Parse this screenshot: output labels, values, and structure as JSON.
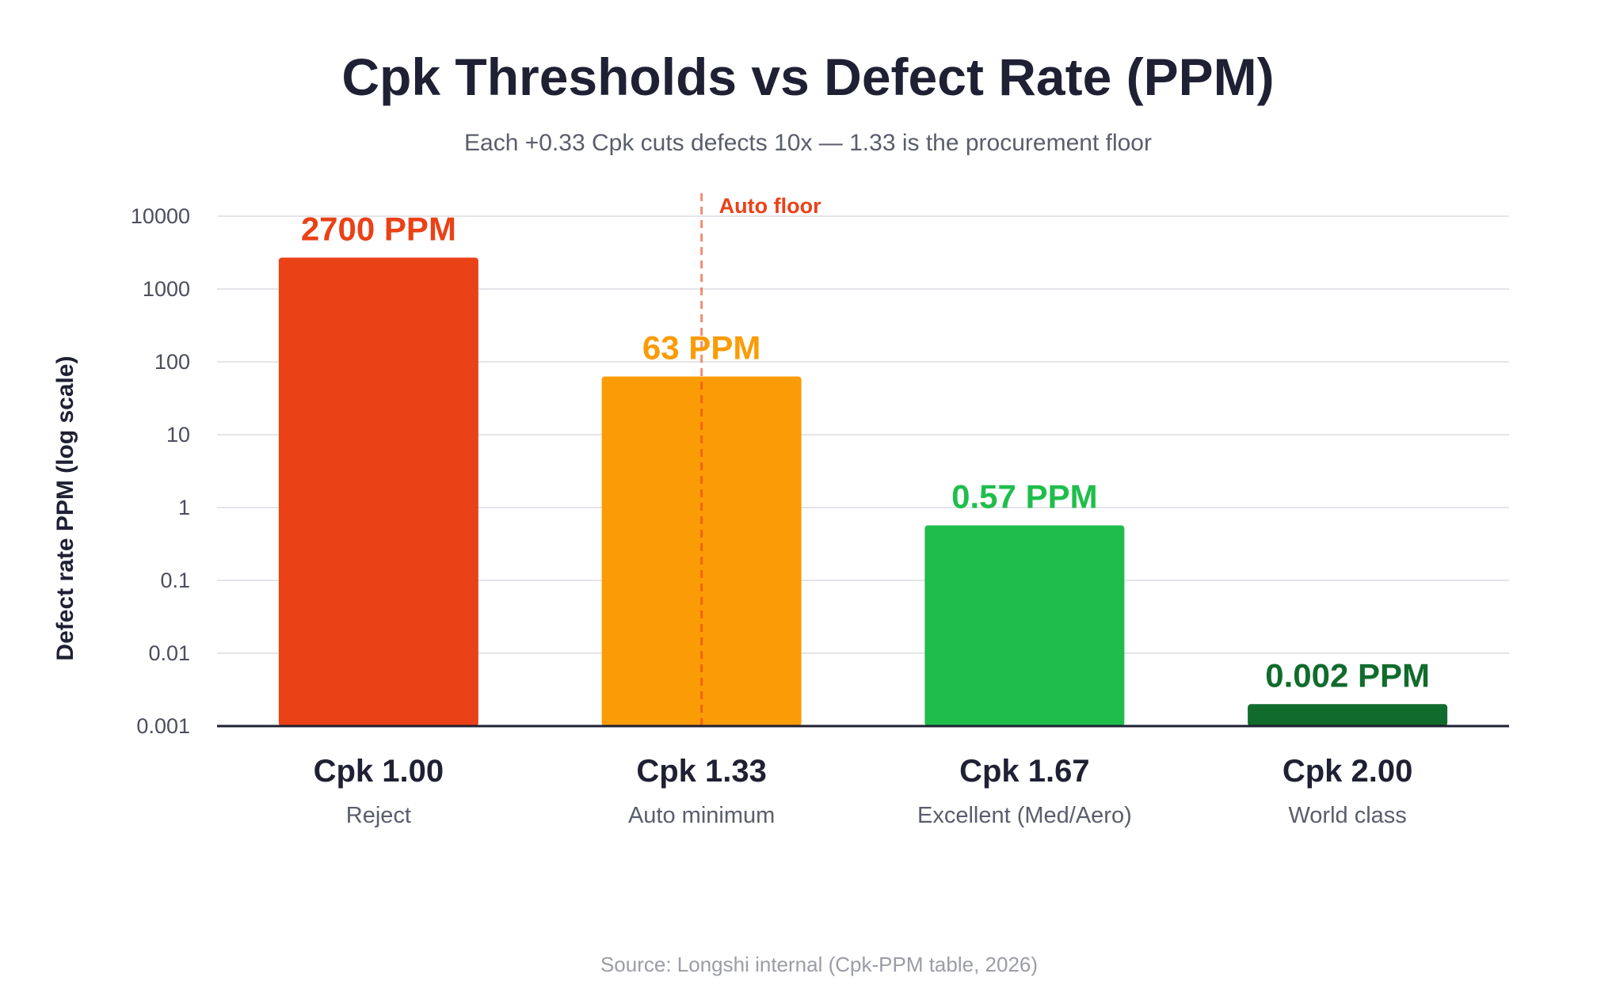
{
  "chart_data": {
    "type": "bar",
    "title": "Cpk Thresholds vs Defect Rate (PPM)",
    "subtitle": "Each +0.33 Cpk cuts defects 10x — 1.33 is the procurement floor",
    "xlabel": "",
    "ylabel": "Defect rate PPM (log scale)",
    "yscale": "log",
    "ylim": [
      0.001,
      10000
    ],
    "yticks": [
      "0.001",
      "0.01",
      "0.1",
      "1",
      "10",
      "100",
      "1000",
      "10000"
    ],
    "grid": true,
    "categories": [
      "Cpk 1.00",
      "Cpk 1.33",
      "Cpk 1.67",
      "Cpk 2.00"
    ],
    "category_sublabels": [
      "Reject",
      "Auto minimum",
      "Excellent (Med/Aero)",
      "World class"
    ],
    "values": [
      2700,
      63,
      0.57,
      0.002
    ],
    "data_labels": [
      "2700 PPM",
      "63 PPM",
      "0.57 PPM",
      "0.002 PPM"
    ],
    "colors": [
      "#ea4117",
      "#fb9b06",
      "#1fbe4c",
      "#116b2d"
    ],
    "reference_line": {
      "label": "Auto floor",
      "category": "Cpk 1.33",
      "color": "#ea4117"
    },
    "source": "Source: Longshi internal (Cpk-PPM table, 2026)"
  }
}
